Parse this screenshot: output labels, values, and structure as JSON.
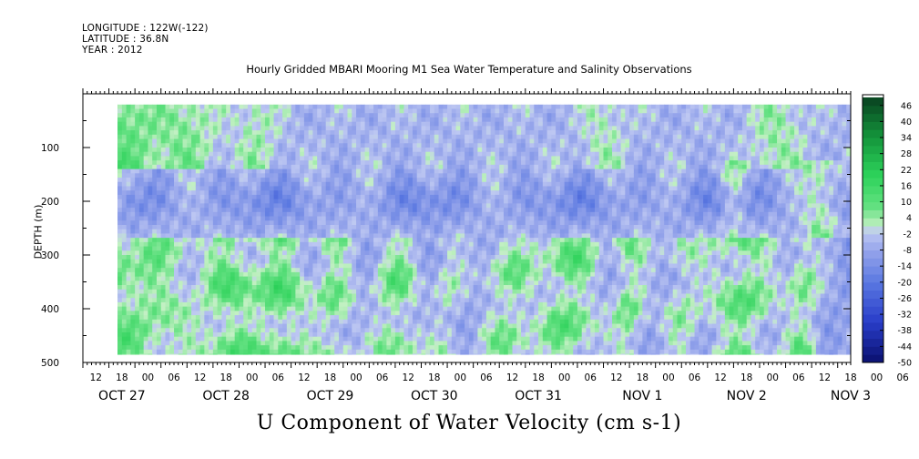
{
  "header": {
    "longitude": "LONGITUDE : 122W(-122)",
    "latitude": "LATITUDE : 36.8N",
    "year": "YEAR : 2012"
  },
  "chart_data": {
    "type": "heatmap",
    "title": "Hourly Gridded MBARI Mooring M1 Sea Water Temperature and Salinity Observations",
    "subtitle": "U Component of Water Velocity (cm s-1)",
    "ylabel": "DEPTH (m)",
    "xlabel": "",
    "ylim": [
      500,
      0
    ],
    "y_axis_inverted": true,
    "yticks": [
      100,
      200,
      300,
      400,
      500
    ],
    "xlim_hours": [
      0,
      177
    ],
    "hour_ticks": [
      "12",
      "18",
      "00",
      "06",
      "12",
      "18",
      "00",
      "06",
      "12",
      "18",
      "00",
      "06",
      "12",
      "18",
      "00",
      "06",
      "12",
      "18",
      "00",
      "06",
      "12",
      "18",
      "00",
      "06",
      "12",
      "18",
      "00",
      "06",
      "12",
      "18",
      "00",
      "06"
    ],
    "date_labels": [
      "OCT 27",
      "OCT 28",
      "OCT 29",
      "OCT 30",
      "OCT 31",
      "NOV  1",
      "NOV  2",
      "NOV  3"
    ],
    "data_depth_range": [
      20,
      485
    ],
    "colorbar": {
      "min": -50,
      "max": 50,
      "step": 3,
      "labels": [
        "46",
        "40",
        "34",
        "28",
        "22",
        "16",
        "10",
        "4",
        "-2",
        "-8",
        "-14",
        "-20",
        "-26",
        "-32",
        "-38",
        "-44",
        "-50"
      ],
      "colors": {
        "low": "#0a0f6e",
        "mid_negative": "#2f46c8",
        "near_zero_negative": "#aab8f0",
        "near_zero_positive": "#b8efb8",
        "mid_positive": "#2ee059",
        "high": "#0a4a24"
      }
    },
    "field_summary": "Values mostly between -20 and +16 cm/s; blue (negative) band near 150-250 m; green (positive) columns in deep layer 300-480 m"
  }
}
